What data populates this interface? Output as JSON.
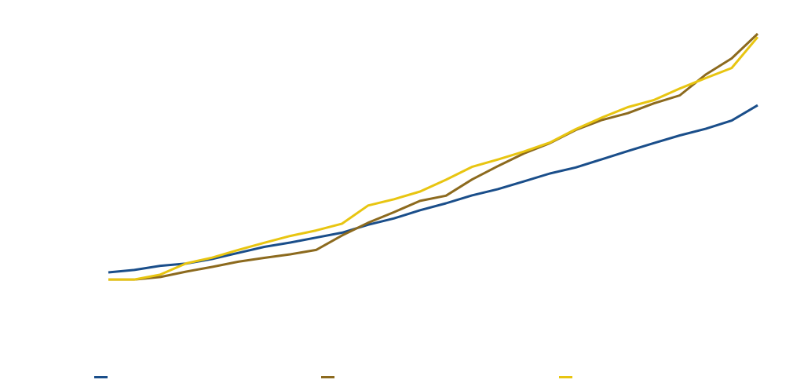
{
  "chart_data": {
    "type": "line",
    "title": "",
    "xlabel": "",
    "ylabel": "",
    "grid": false,
    "legend_position": "bottom",
    "x": [
      1,
      2,
      3,
      4,
      5,
      6,
      7,
      8,
      9,
      10,
      11,
      12,
      13,
      14,
      15,
      16,
      17,
      18,
      19,
      20,
      21,
      22,
      23,
      24,
      25,
      26
    ],
    "ylim": [
      0,
      100
    ],
    "series": [
      {
        "name": "",
        "color": "#1a4e8a",
        "values": [
          0.0,
          0.9,
          2.4,
          3.2,
          4.9,
          7.1,
          9.3,
          10.9,
          12.7,
          14.5,
          17.4,
          19.7,
          22.7,
          25.2,
          28.1,
          30.4,
          33.2,
          36.1,
          38.3,
          41.3,
          44.3,
          47.2,
          50.0,
          52.4,
          55.4,
          61.0
        ]
      },
      {
        "name": "",
        "color": "#8c6a1e",
        "values": [
          -2.6,
          -2.6,
          -1.7,
          0.3,
          2.0,
          3.9,
          5.3,
          6.6,
          8.2,
          13.5,
          18.1,
          22.0,
          26.1,
          28.0,
          33.9,
          38.8,
          43.4,
          47.2,
          52.0,
          55.6,
          58.1,
          61.7,
          64.6,
          72.2,
          78.1,
          87.1
        ]
      },
      {
        "name": "",
        "color": "#e8c511",
        "values": [
          -2.6,
          -2.6,
          -0.8,
          3.3,
          5.4,
          8.2,
          10.8,
          13.3,
          15.3,
          17.8,
          24.4,
          26.7,
          29.5,
          33.8,
          38.5,
          41.2,
          44.1,
          47.4,
          52.3,
          56.5,
          60.3,
          62.9,
          67.1,
          70.9,
          74.6,
          85.9
        ]
      }
    ]
  }
}
